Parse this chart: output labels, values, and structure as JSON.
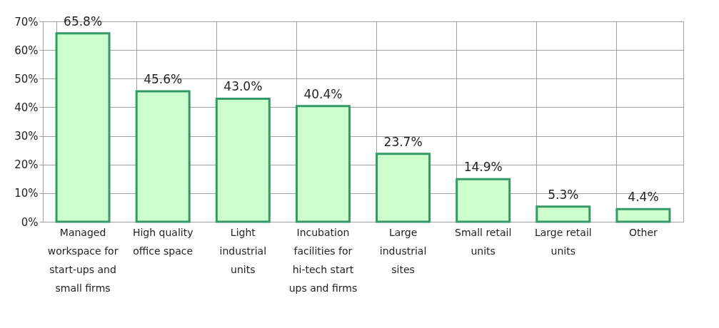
{
  "chart_data": {
    "type": "bar",
    "categories": [
      "Managed workspace for start-ups and small firms",
      "High quality office space",
      "Light industrial units",
      "Incubation facilities for hi-tech start ups and firms",
      "Large industrial sites",
      "Small retail units",
      "Large retail units",
      "Other"
    ],
    "values": [
      65.8,
      45.6,
      43.0,
      40.4,
      23.7,
      14.9,
      5.3,
      4.4
    ],
    "value_labels": [
      "65.8%",
      "45.6%",
      "43.0%",
      "40.4%",
      "23.7%",
      "14.9%",
      "5.3%",
      "4.4%"
    ],
    "color": "#ccffcc",
    "ylim": [
      0,
      70
    ],
    "yticks": [
      {
        "value": 0,
        "label": "0%"
      },
      {
        "value": 10,
        "label": "10%"
      },
      {
        "value": 20,
        "label": "20%"
      },
      {
        "value": 30,
        "label": "30%"
      },
      {
        "value": 40,
        "label": "40%"
      },
      {
        "value": 50,
        "label": "50%"
      },
      {
        "value": 60,
        "label": "60%"
      },
      {
        "value": 70,
        "label": "70%"
      }
    ],
    "grid": true
  }
}
